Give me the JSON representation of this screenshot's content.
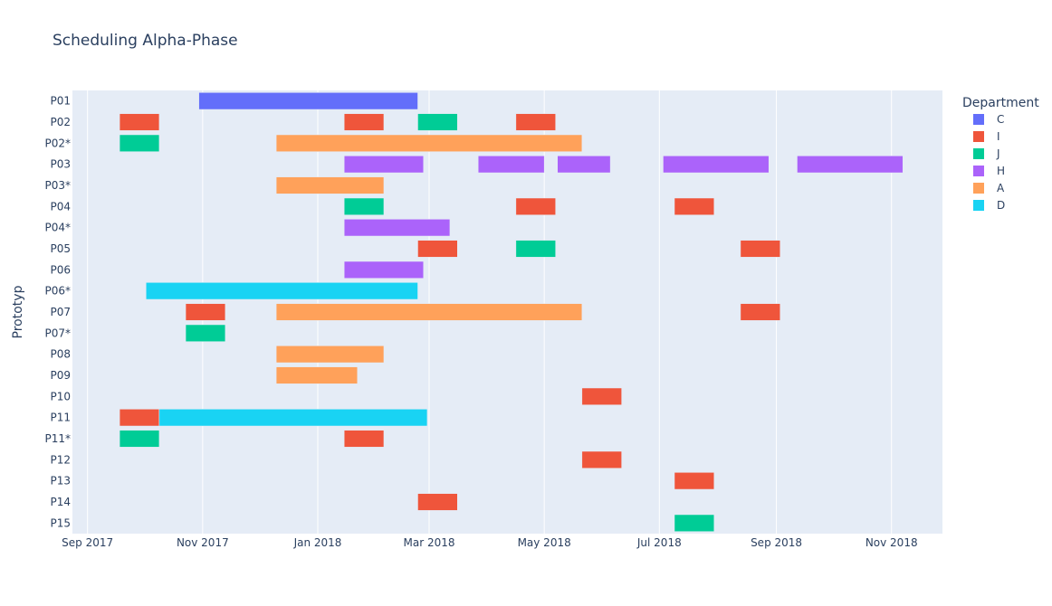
{
  "chart_data": {
    "type": "timeline",
    "title": "Scheduling Alpha-Phase",
    "ylabel": "Prototyp",
    "xlabel": "",
    "legend_title": "Department",
    "legend_position": "right",
    "x_range": [
      "2017-08-24",
      "2018-11-28"
    ],
    "x_ticks": [
      {
        "date": "2017-09-01",
        "label": "Sep 2017"
      },
      {
        "date": "2017-11-01",
        "label": "Nov 2017"
      },
      {
        "date": "2018-01-01",
        "label": "Jan 2018"
      },
      {
        "date": "2018-03-01",
        "label": "Mar 2018"
      },
      {
        "date": "2018-05-01",
        "label": "May 2018"
      },
      {
        "date": "2018-07-01",
        "label": "Jul 2018"
      },
      {
        "date": "2018-09-01",
        "label": "Sep 2018"
      },
      {
        "date": "2018-11-01",
        "label": "Nov 2018"
      }
    ],
    "categories": [
      "P01",
      "P02",
      "P02*",
      "P03",
      "P03*",
      "P04",
      "P04*",
      "P05",
      "P06",
      "P06*",
      "P07",
      "P07*",
      "P08",
      "P09",
      "P10",
      "P11",
      "P11*",
      "P12",
      "P13",
      "P14",
      "P15"
    ],
    "departments": [
      {
        "name": "C",
        "color": "#636efa"
      },
      {
        "name": "I",
        "color": "#EF553B"
      },
      {
        "name": "J",
        "color": "#00cc96"
      },
      {
        "name": "H",
        "color": "#ab63fa"
      },
      {
        "name": "A",
        "color": "#FFA15A"
      },
      {
        "name": "D",
        "color": "#19d3f3"
      }
    ],
    "tasks": [
      {
        "task": "P01",
        "start": "2017-10-30",
        "end": "2018-02-23",
        "dept": "C"
      },
      {
        "task": "P02",
        "start": "2017-09-18",
        "end": "2017-10-09",
        "dept": "I"
      },
      {
        "task": "P02",
        "start": "2018-01-15",
        "end": "2018-02-05",
        "dept": "I"
      },
      {
        "task": "P02",
        "start": "2018-02-23",
        "end": "2018-03-16",
        "dept": "J"
      },
      {
        "task": "P02",
        "start": "2018-04-16",
        "end": "2018-05-07",
        "dept": "I"
      },
      {
        "task": "P02*",
        "start": "2017-09-18",
        "end": "2017-10-09",
        "dept": "J"
      },
      {
        "task": "P02*",
        "start": "2017-12-10",
        "end": "2018-05-21",
        "dept": "A"
      },
      {
        "task": "P03",
        "start": "2018-01-15",
        "end": "2018-02-26",
        "dept": "H"
      },
      {
        "task": "P03",
        "start": "2018-03-27",
        "end": "2018-05-01",
        "dept": "H"
      },
      {
        "task": "P03",
        "start": "2018-05-08",
        "end": "2018-06-05",
        "dept": "H"
      },
      {
        "task": "P03",
        "start": "2018-07-03",
        "end": "2018-08-28",
        "dept": "H"
      },
      {
        "task": "P03",
        "start": "2018-09-12",
        "end": "2018-11-07",
        "dept": "H"
      },
      {
        "task": "P03*",
        "start": "2017-12-10",
        "end": "2018-02-05",
        "dept": "A"
      },
      {
        "task": "P04",
        "start": "2018-01-15",
        "end": "2018-02-05",
        "dept": "J"
      },
      {
        "task": "P04",
        "start": "2018-04-16",
        "end": "2018-05-07",
        "dept": "I"
      },
      {
        "task": "P04",
        "start": "2018-07-09",
        "end": "2018-07-30",
        "dept": "I"
      },
      {
        "task": "P04*",
        "start": "2018-01-15",
        "end": "2018-03-12",
        "dept": "H"
      },
      {
        "task": "P05",
        "start": "2018-02-23",
        "end": "2018-03-16",
        "dept": "I"
      },
      {
        "task": "P05",
        "start": "2018-04-16",
        "end": "2018-05-07",
        "dept": "J"
      },
      {
        "task": "P05",
        "start": "2018-08-13",
        "end": "2018-09-03",
        "dept": "I"
      },
      {
        "task": "P06",
        "start": "2018-01-15",
        "end": "2018-02-26",
        "dept": "H"
      },
      {
        "task": "P06*",
        "start": "2017-10-02",
        "end": "2018-02-23",
        "dept": "D"
      },
      {
        "task": "P07",
        "start": "2017-10-23",
        "end": "2017-11-13",
        "dept": "I"
      },
      {
        "task": "P07",
        "start": "2017-12-10",
        "end": "2018-05-21",
        "dept": "A"
      },
      {
        "task": "P07",
        "start": "2018-08-13",
        "end": "2018-09-03",
        "dept": "I"
      },
      {
        "task": "P07*",
        "start": "2017-10-23",
        "end": "2017-11-13",
        "dept": "J"
      },
      {
        "task": "P08",
        "start": "2017-12-10",
        "end": "2018-02-05",
        "dept": "A"
      },
      {
        "task": "P09",
        "start": "2017-12-10",
        "end": "2018-01-22",
        "dept": "A"
      },
      {
        "task": "P10",
        "start": "2018-05-21",
        "end": "2018-06-11",
        "dept": "I"
      },
      {
        "task": "P11",
        "start": "2017-09-18",
        "end": "2017-10-09",
        "dept": "I"
      },
      {
        "task": "P11",
        "start": "2017-10-09",
        "end": "2018-02-28",
        "dept": "D"
      },
      {
        "task": "P11*",
        "start": "2017-09-18",
        "end": "2017-10-09",
        "dept": "J"
      },
      {
        "task": "P11*",
        "start": "2018-01-15",
        "end": "2018-02-05",
        "dept": "I"
      },
      {
        "task": "P12",
        "start": "2018-05-21",
        "end": "2018-06-11",
        "dept": "I"
      },
      {
        "task": "P13",
        "start": "2018-07-09",
        "end": "2018-07-30",
        "dept": "I"
      },
      {
        "task": "P14",
        "start": "2018-02-23",
        "end": "2018-03-16",
        "dept": "I"
      },
      {
        "task": "P15",
        "start": "2018-07-09",
        "end": "2018-07-30",
        "dept": "J"
      }
    ]
  }
}
